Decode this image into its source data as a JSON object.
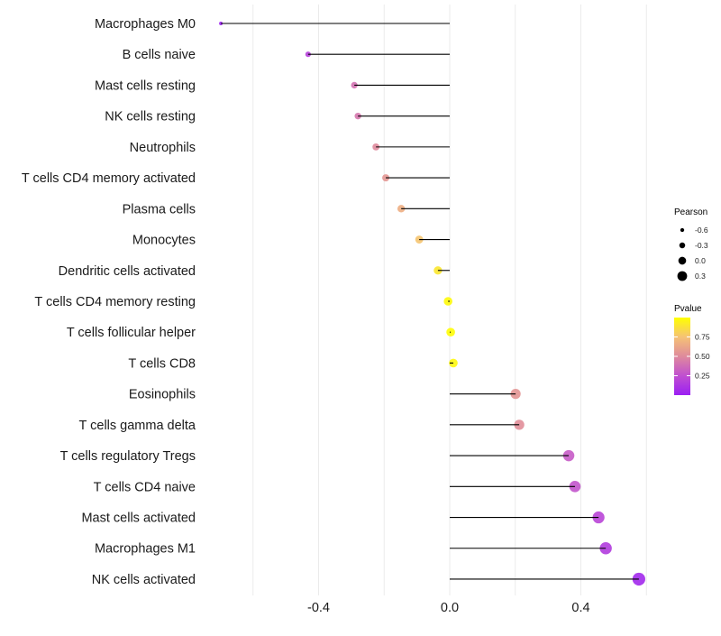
{
  "chart_data": {
    "type": "lollipop",
    "title": "",
    "xlabel": "",
    "ylabel": "",
    "xlim": [
      -0.745,
      0.79
    ],
    "x_ticks": [
      -0.4,
      0.0,
      0.4
    ],
    "x_tick_labels": [
      "-0.4",
      "0.0",
      "0.4"
    ],
    "grid": true,
    "categories": [
      "Macrophages M0",
      "B cells naive",
      "Mast cells resting",
      "NK cells resting",
      "Neutrophils",
      "T cells CD4 memory activated",
      "Plasma cells",
      "Monocytes",
      "Dendritic cells activated",
      "T cells CD4 memory resting",
      "T cells follicular helper",
      "T cells CD8",
      "Eosinophils",
      "T cells gamma delta",
      "T cells regulatory  Tregs",
      "T cells CD4 naive",
      "Mast cells activated",
      "Macrophages M1",
      "NK cells activated"
    ],
    "pearson": [
      -0.698,
      -0.432,
      -0.291,
      -0.28,
      -0.225,
      -0.195,
      -0.148,
      -0.093,
      -0.036,
      -0.005,
      0.003,
      0.011,
      0.201,
      0.212,
      0.363,
      0.382,
      0.454,
      0.476,
      0.577
    ],
    "pvalue": [
      0.01,
      0.18,
      0.4,
      0.42,
      0.5,
      0.56,
      0.66,
      0.76,
      0.9,
      0.98,
      0.99,
      0.97,
      0.55,
      0.52,
      0.3,
      0.27,
      0.2,
      0.15,
      0.05
    ],
    "legend_size": {
      "title": "Pearson",
      "values": [
        -0.6,
        -0.3,
        0.0,
        0.3
      ],
      "labels": [
        "-0.6",
        "-0.3",
        "0.0",
        "0.3"
      ]
    },
    "legend_color": {
      "title": "Pvalue",
      "ticks": [
        0.75,
        0.5,
        0.25
      ],
      "labels": [
        "0.75",
        "0.50",
        "0.25"
      ],
      "range": [
        0.0,
        1.0
      ],
      "low_color": "#9b1ff3",
      "high_color": "#ffff00"
    },
    "legend_placement": "right"
  }
}
